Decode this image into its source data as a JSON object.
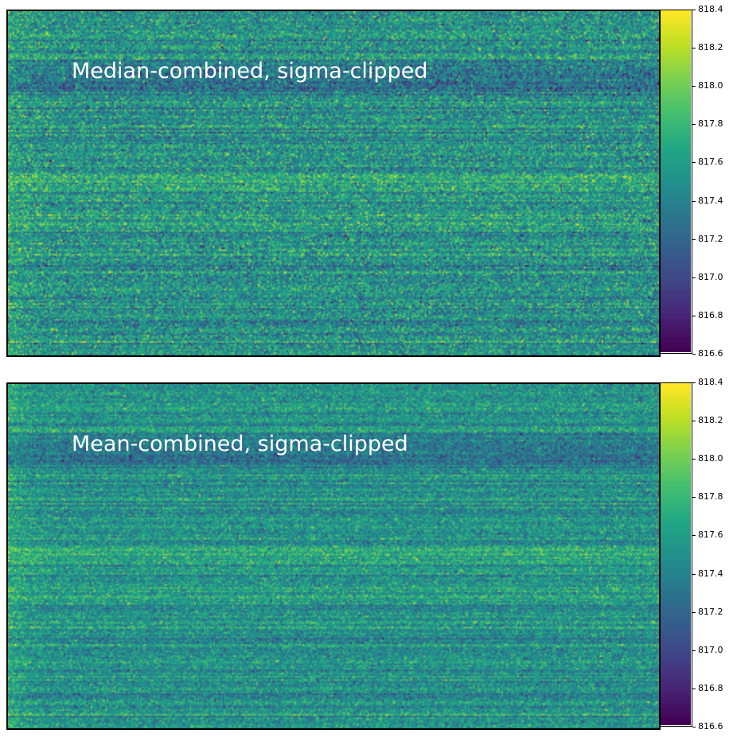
{
  "chart_data": [
    {
      "type": "heatmap",
      "overlay_text": "Median-combined, sigma-clipped",
      "colormap": "viridis",
      "colorbar": {
        "range": [
          816.6,
          818.4
        ],
        "ticks": [
          "816.6",
          "816.8",
          "817.0",
          "817.2",
          "817.4",
          "817.6",
          "817.8",
          "818.0",
          "818.2",
          "818.4"
        ]
      },
      "grid": false,
      "axes_visible": false
    },
    {
      "type": "heatmap",
      "overlay_text": "Mean-combined, sigma-clipped",
      "colormap": "viridis",
      "colorbar": {
        "range": [
          816.6,
          818.4
        ],
        "ticks": [
          "816.6",
          "816.8",
          "817.0",
          "817.2",
          "817.4",
          "817.6",
          "817.8",
          "818.0",
          "818.2",
          "818.4"
        ]
      },
      "grid": false,
      "axes_visible": false
    }
  ]
}
